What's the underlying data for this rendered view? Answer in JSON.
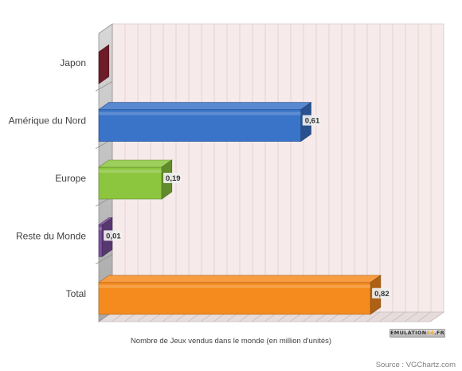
{
  "chart_data": {
    "type": "bar",
    "orientation": "horizontal",
    "categories": [
      "Japon",
      "Amérique du Nord",
      "Europe",
      "Reste du Monde",
      "Total"
    ],
    "values": [
      0,
      0.61,
      0.19,
      0.01,
      0.82
    ],
    "value_labels": [
      "",
      "0,61",
      "0,19",
      "0,01",
      "0,82"
    ],
    "colors": [
      "#7a1f2b",
      "#3a74c9",
      "#8cc63f",
      "#7b4f9e",
      "#f58b1f"
    ],
    "xlabel": "Nombre de Jeux vendus dans le monde (en million d'unités)",
    "xlim": [
      0,
      1
    ],
    "grid": true,
    "style": "3d",
    "source": "Source : VGChartz.com"
  },
  "branding": {
    "logo_prefix": "EMULATION",
    "logo_mid": "64",
    "logo_suffix": ".FR"
  }
}
